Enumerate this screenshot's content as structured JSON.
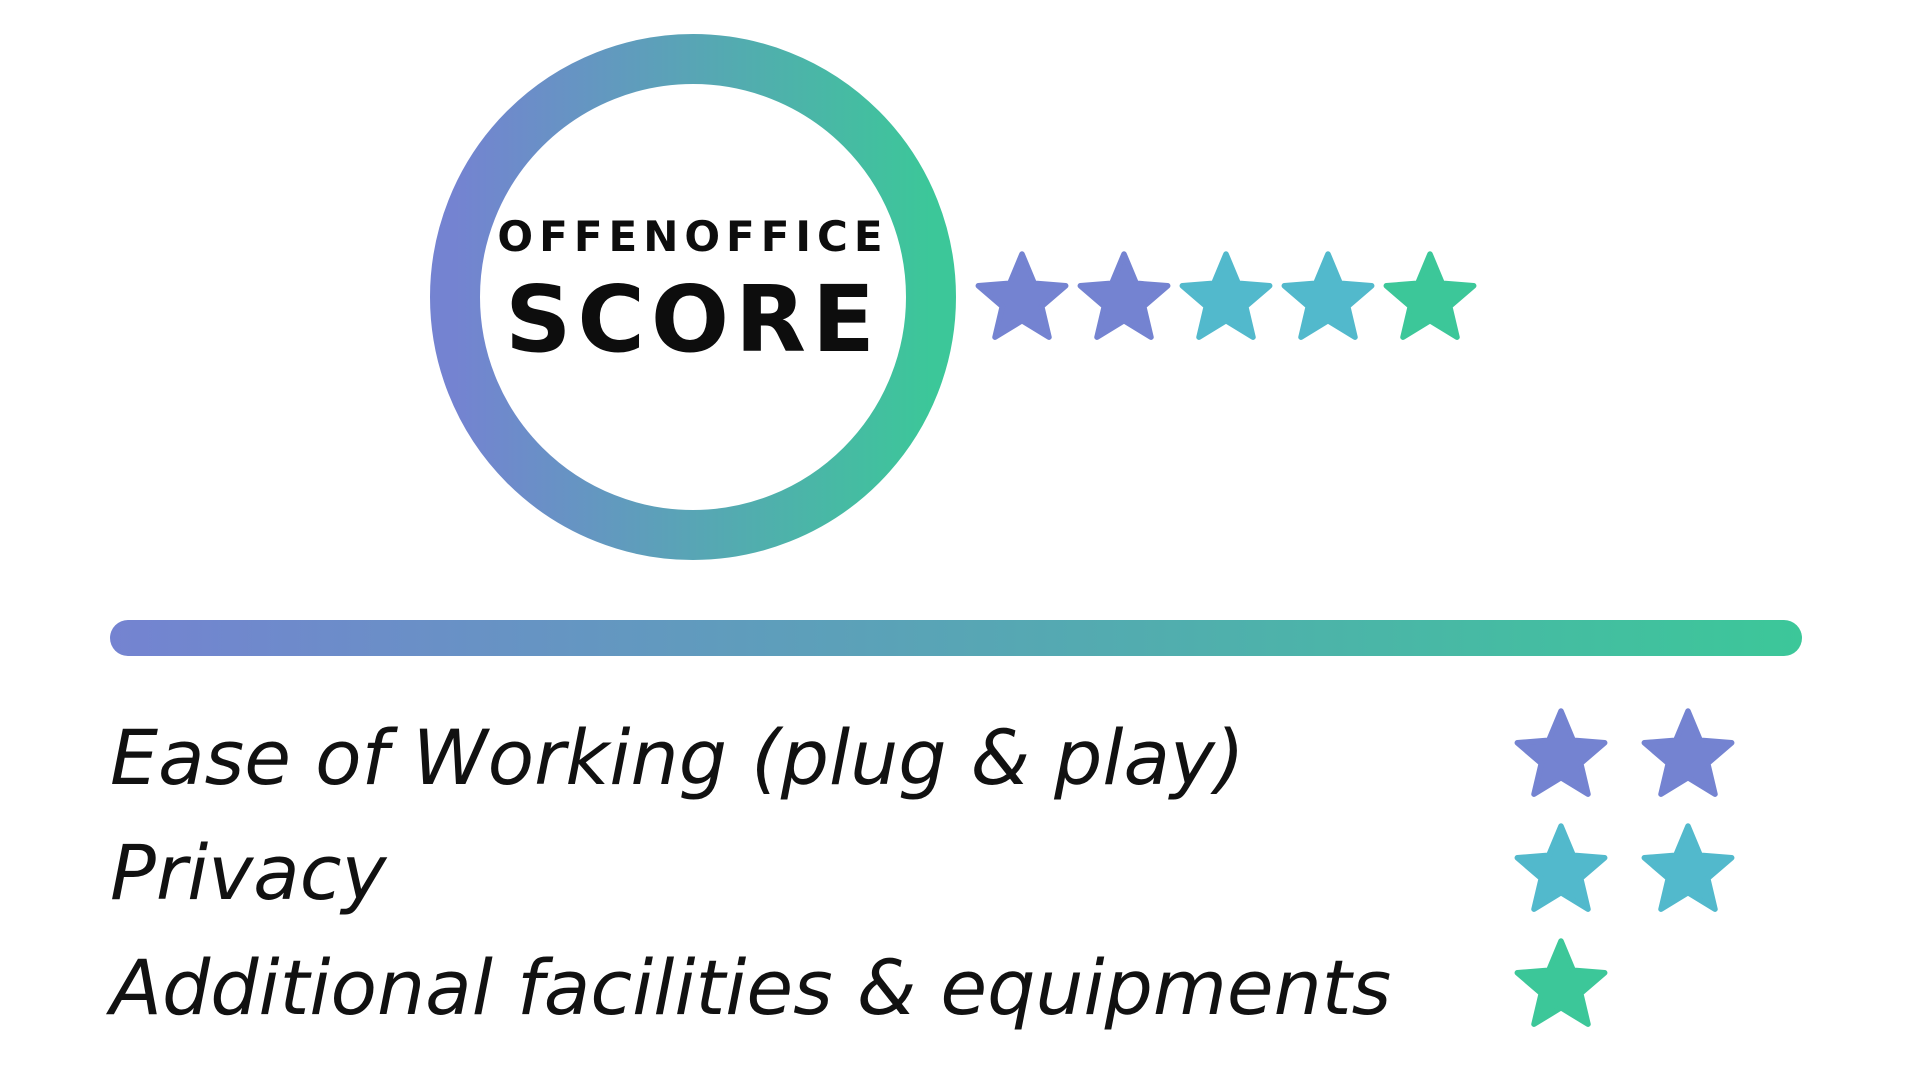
{
  "colors": {
    "gradient_start": "#7483d1",
    "gradient_end": "#3cc799",
    "star_purple": "#7483d1",
    "star_teal": "#52b9cc",
    "star_green": "#3cc799",
    "text": "#111111"
  },
  "badge": {
    "brand": "OFFENOFFICE",
    "title": "SCORE"
  },
  "overall_rating": {
    "stars": 5,
    "star_colors": [
      "#7483d1",
      "#7483d1",
      "#52b9cc",
      "#52b9cc",
      "#3cc799"
    ]
  },
  "criteria": [
    {
      "label": "Ease of Working (plug & play)",
      "stars": 2,
      "color": "#7483d1"
    },
    {
      "label": "Privacy",
      "stars": 2,
      "color": "#52b9cc"
    },
    {
      "label": "Additional facilities & equipments",
      "stars": 1,
      "color": "#3cc799"
    }
  ]
}
